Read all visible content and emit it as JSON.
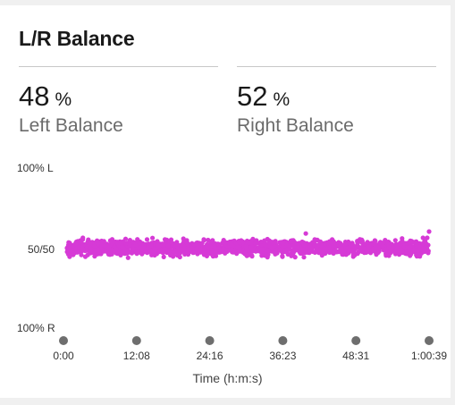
{
  "card": {
    "title": "L/R Balance"
  },
  "stats": [
    {
      "value": "48",
      "unit": "%",
      "label": "Left Balance"
    },
    {
      "value": "52",
      "unit": "%",
      "label": "Right Balance"
    }
  ],
  "colors": {
    "points": "#d63ad6",
    "tick_dot": "#6e6e6e",
    "divider": "#c8c8c8"
  },
  "chart_data": {
    "type": "scatter",
    "title": "",
    "xlabel": "Time (h:m:s)",
    "ylabel": "",
    "y_tick_labels": [
      "100% L",
      "50/50",
      "100% R"
    ],
    "x_tick_labels": [
      "0:00",
      "12:08",
      "24:16",
      "36:23",
      "48:31",
      "1:00:39"
    ],
    "xlim_seconds": [
      0,
      3639
    ],
    "ylim_percent_left": [
      0,
      100
    ],
    "grid": false,
    "legend": "none",
    "series": [
      {
        "summary": "dense band of points around 50/50, mostly between ~46% and ~54% left, with sparse outliers up to ~59% and down to ~42%",
        "points": [
          [
            0,
            49.8
          ],
          [
            30,
            51.2
          ],
          [
            60,
            48.7
          ],
          [
            90,
            52.4
          ],
          [
            120,
            50.6
          ],
          [
            150,
            47.9
          ],
          [
            180,
            51.8
          ],
          [
            210,
            49.3
          ],
          [
            240,
            53.1
          ],
          [
            270,
            50.2
          ],
          [
            300,
            48.1
          ],
          [
            330,
            52.0
          ],
          [
            360,
            49.6
          ],
          [
            390,
            51.5
          ],
          [
            420,
            47.6
          ],
          [
            450,
            50.9
          ],
          [
            480,
            52.8
          ],
          [
            510,
            49.1
          ],
          [
            540,
            48.4
          ],
          [
            570,
            51.1
          ],
          [
            600,
            50.4
          ],
          [
            630,
            53.4
          ],
          [
            660,
            47.4
          ],
          [
            690,
            50.7
          ],
          [
            720,
            49.0
          ],
          [
            750,
            52.3
          ],
          [
            780,
            51.0
          ],
          [
            810,
            48.9
          ],
          [
            840,
            50.1
          ],
          [
            870,
            47.8
          ],
          [
            900,
            52.6
          ],
          [
            930,
            49.9
          ],
          [
            960,
            51.4
          ],
          [
            990,
            48.2
          ],
          [
            1020,
            50.5
          ],
          [
            1050,
            53.0
          ],
          [
            1080,
            49.4
          ],
          [
            1110,
            51.7
          ],
          [
            1140,
            46.9
          ],
          [
            1170,
            55.6
          ],
          [
            1200,
            50.3
          ],
          [
            1230,
            48.6
          ],
          [
            1260,
            52.2
          ],
          [
            1290,
            49.7
          ],
          [
            1320,
            51.3
          ],
          [
            1350,
            47.2
          ],
          [
            1380,
            54.8
          ],
          [
            1410,
            50.8
          ],
          [
            1440,
            48.8
          ],
          [
            1470,
            52.5
          ],
          [
            1500,
            49.2
          ],
          [
            1530,
            51.6
          ],
          [
            1560,
            47.5
          ],
          [
            1590,
            50.0
          ],
          [
            1620,
            53.2
          ],
          [
            1650,
            49.5
          ],
          [
            1680,
            51.9
          ],
          [
            1710,
            48.0
          ],
          [
            1740,
            50.6
          ],
          [
            1770,
            47.0
          ],
          [
            1800,
            52.7
          ],
          [
            1830,
            49.8
          ],
          [
            1860,
            44.6
          ],
          [
            1890,
            51.2
          ],
          [
            1920,
            48.5
          ],
          [
            1950,
            53.6
          ],
          [
            1980,
            50.2
          ],
          [
            2010,
            47.7
          ],
          [
            2040,
            51.8
          ],
          [
            2070,
            49.3
          ],
          [
            2100,
            52.1
          ],
          [
            2130,
            50.5
          ],
          [
            2160,
            48.3
          ],
          [
            2190,
            53.9
          ],
          [
            2220,
            49.6
          ],
          [
            2250,
            51.4
          ],
          [
            2280,
            47.3
          ],
          [
            2310,
            50.9
          ],
          [
            2340,
            52.9
          ],
          [
            2370,
            49.1
          ],
          [
            2400,
            58.9
          ],
          [
            2430,
            51.0
          ],
          [
            2460,
            48.7
          ],
          [
            2490,
            55.1
          ],
          [
            2520,
            50.4
          ],
          [
            2550,
            47.9
          ],
          [
            2580,
            52.4
          ],
          [
            2610,
            49.0
          ],
          [
            2640,
            51.6
          ],
          [
            2670,
            46.8
          ],
          [
            2700,
            50.7
          ],
          [
            2730,
            53.3
          ],
          [
            2760,
            48.9
          ],
          [
            2790,
            51.5
          ],
          [
            2820,
            49.4
          ],
          [
            2850,
            52.6
          ],
          [
            2880,
            47.6
          ],
          [
            2910,
            50.1
          ],
          [
            2940,
            54.2
          ],
          [
            2970,
            49.7
          ],
          [
            3000,
            51.1
          ],
          [
            3030,
            48.4
          ],
          [
            3060,
            52.8
          ],
          [
            3090,
            50.3
          ],
          [
            3120,
            47.1
          ],
          [
            3150,
            53.5
          ],
          [
            3180,
            49.9
          ],
          [
            3210,
            51.7
          ],
          [
            3240,
            48.1
          ],
          [
            3270,
            50.8
          ],
          [
            3300,
            54.6
          ],
          [
            3330,
            49.2
          ],
          [
            3360,
            51.3
          ],
          [
            3390,
            47.4
          ],
          [
            3420,
            52.0
          ],
          [
            3450,
            50.0
          ],
          [
            3480,
            48.6
          ],
          [
            3510,
            53.8
          ],
          [
            3540,
            49.5
          ],
          [
            3570,
            51.9
          ],
          [
            3600,
            50.6
          ],
          [
            3620,
            56.2
          ],
          [
            3639,
            60.1
          ]
        ]
      }
    ]
  }
}
